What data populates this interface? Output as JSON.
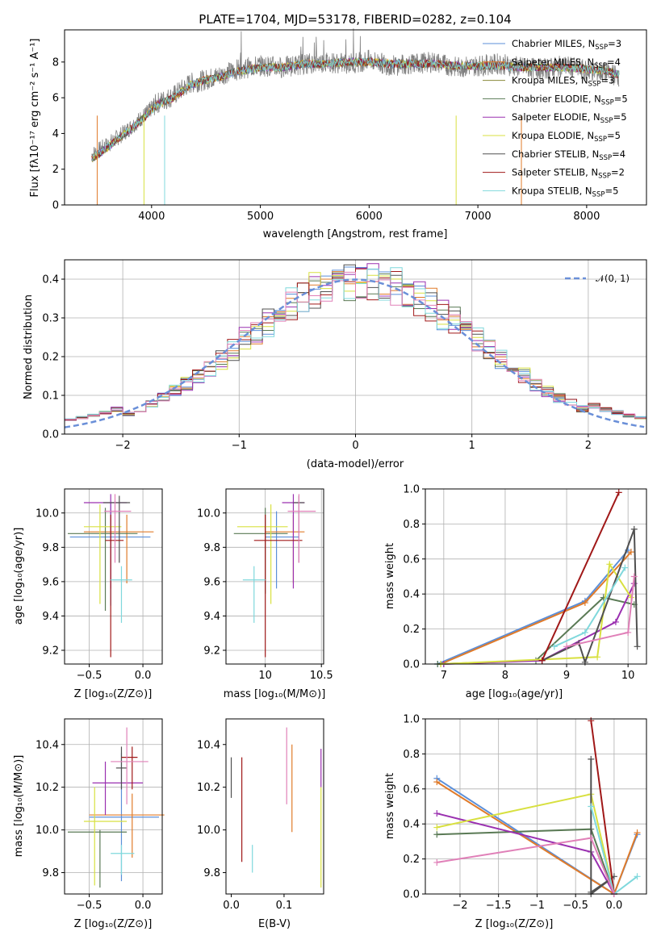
{
  "colors": [
    "#5b8fd9",
    "#e07b2a",
    "#8a8a3a",
    "#5a7a55",
    "#9a30b0",
    "#d8e040",
    "#505050",
    "#a01818",
    "#7fd8dc",
    "#e080b8",
    "#808080"
  ],
  "chart_data": [
    {
      "id": "spectrum",
      "type": "line",
      "title": "PLATE=1704, MJD=53178, FIBERID=0282, z=0.104",
      "xlabel": "wavelength [Angstrom, rest frame]",
      "ylabel": "Flux [fλ10⁻¹⁷ erg cm⁻² s⁻¹ A⁻¹]",
      "xlim": [
        3200,
        8550
      ],
      "ylim": [
        0,
        9.8
      ],
      "xticks": [
        4000,
        5000,
        6000,
        7000,
        8000
      ],
      "yticks": [
        0,
        2,
        4,
        6,
        8
      ],
      "grid": false,
      "legend_position": "top-right",
      "data_x": [
        3450,
        3550,
        3650,
        3800,
        3950,
        4050,
        4200,
        4350,
        4500,
        4650,
        4800,
        5000,
        5200,
        5400,
        5600,
        5800,
        6000,
        6200,
        6400,
        6600,
        6800,
        7000,
        7200,
        7400,
        7600,
        7800,
        8000,
        8200,
        8300
      ],
      "data_y": [
        2.8,
        3.2,
        3.6,
        4.3,
        5.1,
        5.7,
        6.1,
        6.8,
        7.0,
        7.3,
        7.6,
        7.8,
        7.7,
        7.9,
        8.0,
        7.9,
        8.1,
        7.8,
        7.9,
        8.0,
        7.7,
        7.8,
        7.9,
        7.7,
        7.6,
        7.8,
        7.5,
        7.4,
        7.2
      ],
      "model_y": [
        2.6,
        3.0,
        3.5,
        4.2,
        5.0,
        5.6,
        6.0,
        6.7,
        7.0,
        7.2,
        7.5,
        7.7,
        7.7,
        7.9,
        7.9,
        8.0,
        8.0,
        7.9,
        7.9,
        7.9,
        7.8,
        7.8,
        7.8,
        7.7,
        7.7,
        7.7,
        7.6,
        7.5,
        7.3
      ],
      "series": [
        {
          "name": "Chabrier MILES, N_SSP=3",
          "label": "Chabrier MILES, N",
          "sub": "SSP",
          "suffix": "=3"
        },
        {
          "name": "Salpeter MILES, N_SSP=4",
          "label": "Salpeter MILES, N",
          "sub": "SSP",
          "suffix": "=4"
        },
        {
          "name": "Kroupa MILES, N_SSP=3",
          "label": "Kroupa MILES, N",
          "sub": "SSP",
          "suffix": "=3"
        },
        {
          "name": "Chabrier ELODIE, N_SSP=5",
          "label": "Chabrier ELODIE, N",
          "sub": "SSP",
          "suffix": "=5"
        },
        {
          "name": "Salpeter ELODIE, N_SSP=5",
          "label": "Salpeter ELODIE, N",
          "sub": "SSP",
          "suffix": "=5"
        },
        {
          "name": "Kroupa ELODIE, N_SSP=5",
          "label": "Kroupa ELODIE, N",
          "sub": "SSP",
          "suffix": "=5"
        },
        {
          "name": "Chabrier STELIB, N_SSP=4",
          "label": "Chabrier STELIB, N",
          "sub": "SSP",
          "suffix": "=4"
        },
        {
          "name": "Salpeter STELIB, N_SSP=2",
          "label": "Salpeter STELIB, N",
          "sub": "SSP",
          "suffix": "=2"
        },
        {
          "name": "Kroupa STELIB, N_SSP=5",
          "label": "Kroupa STELIB, N",
          "sub": "SSP",
          "suffix": "=5"
        }
      ]
    },
    {
      "id": "residuals",
      "type": "histogram",
      "xlabel": "(data-model)/error",
      "ylabel": "Normed distribution",
      "xlim": [
        -2.5,
        2.5
      ],
      "ylim": [
        0,
        0.45
      ],
      "xticks": [
        -2,
        -1,
        0,
        1,
        2
      ],
      "yticks": [
        0.0,
        0.1,
        0.2,
        0.3,
        0.4
      ],
      "grid": true,
      "legend_position": "top-right",
      "reference_curve": "𝒩(0, 1)",
      "bin_width": 0.1
    },
    {
      "id": "age_vs_Z",
      "type": "errorbar",
      "xlabel": "Z [log₁₀(Z/Z⊙)]",
      "ylabel": "age  [log₁₀(age/yr)]",
      "xlim": [
        -0.73,
        0.18
      ],
      "ylim": [
        9.12,
        10.14
      ],
      "xticks": [
        -0.5,
        0.0
      ],
      "yticks": [
        9.2,
        9.4,
        9.6,
        9.8,
        10.0
      ],
      "points": [
        {
          "c": 0,
          "x": -0.3,
          "y": 9.86,
          "xe": [
            0.38,
            0.37
          ],
          "ye": [
            0.4,
            0.2
          ]
        },
        {
          "c": 1,
          "x": -0.15,
          "y": 9.89,
          "xe": [
            0.4,
            0.25
          ],
          "ye": [
            0.3,
            0.1
          ]
        },
        {
          "c": 3,
          "x": -0.35,
          "y": 9.88,
          "xe": [
            0.35,
            0.3
          ],
          "ye": [
            0.45,
            0.15
          ]
        },
        {
          "c": 4,
          "x": -0.3,
          "y": 10.06,
          "xe": [
            0.25,
            0.15
          ],
          "ye": [
            0.5,
            0.05
          ]
        },
        {
          "c": 5,
          "x": -0.4,
          "y": 9.92,
          "xe": [
            0.15,
            0.2
          ],
          "ye": [
            0.45,
            0.13
          ]
        },
        {
          "c": 6,
          "x": -0.22,
          "y": 10.06,
          "xe": [
            0.15,
            0.1
          ],
          "ye": [
            0.35,
            0.04
          ]
        },
        {
          "c": 7,
          "x": -0.3,
          "y": 9.84,
          "xe": [
            0.05,
            0.12
          ],
          "ye": [
            0.68,
            0.15
          ]
        },
        {
          "c": 8,
          "x": -0.2,
          "y": 9.61,
          "xe": [
            0.1,
            0.1
          ],
          "ye": [
            0.25,
            0.08
          ]
        },
        {
          "c": 9,
          "x": -0.26,
          "y": 10.01,
          "xe": [
            0.1,
            0.15
          ],
          "ye": [
            0.3,
            0.1
          ]
        }
      ]
    },
    {
      "id": "age_vs_mass",
      "type": "errorbar",
      "xlabel": "mass [log₁₀(M/M⊙)]",
      "ylabel": "",
      "xlim": [
        9.65,
        10.52
      ],
      "ylim": [
        9.12,
        10.14
      ],
      "xticks": [
        10.0,
        10.5
      ],
      "yticks": [
        9.2,
        9.4,
        9.6,
        9.8,
        10.0
      ],
      "points": [
        {
          "c": 0,
          "x": 10.1,
          "y": 9.86,
          "xe": [
            0.1,
            0.2
          ],
          "ye": [
            0.3,
            0.15
          ]
        },
        {
          "c": 1,
          "x": 10.25,
          "y": 9.89,
          "xe": [
            0.25,
            0.1
          ],
          "ye": [
            0.3,
            0.1
          ]
        },
        {
          "c": 3,
          "x": 10.0,
          "y": 9.88,
          "xe": [
            0.28,
            0.2
          ],
          "ye": [
            0.35,
            0.15
          ]
        },
        {
          "c": 4,
          "x": 10.25,
          "y": 10.06,
          "xe": [
            0.1,
            0.1
          ],
          "ye": [
            0.5,
            0.05
          ]
        },
        {
          "c": 5,
          "x": 10.05,
          "y": 9.92,
          "xe": [
            0.3,
            0.15
          ],
          "ye": [
            0.45,
            0.13
          ]
        },
        {
          "c": 6,
          "x": 10.3,
          "y": 10.06,
          "xe": [
            0.05,
            0.05
          ],
          "ye": [
            0.35,
            0.04
          ]
        },
        {
          "c": 7,
          "x": 10.0,
          "y": 9.84,
          "xe": [
            0.1,
            0.33
          ],
          "ye": [
            0.68,
            0.15
          ]
        },
        {
          "c": 8,
          "x": 9.9,
          "y": 9.61,
          "xe": [
            0.1,
            0.1
          ],
          "ye": [
            0.25,
            0.08
          ]
        },
        {
          "c": 9,
          "x": 10.3,
          "y": 10.01,
          "xe": [
            0.1,
            0.15
          ],
          "ye": [
            0.3,
            0.1
          ]
        }
      ]
    },
    {
      "id": "weight_vs_age",
      "type": "line",
      "xlabel": "age  [log₁₀(age/yr)]",
      "ylabel": "mass weight",
      "xlim": [
        6.7,
        10.3
      ],
      "ylim": [
        0,
        1.0
      ],
      "xticks": [
        7,
        8,
        9,
        10
      ],
      "yticks": [
        0.0,
        0.2,
        0.4,
        0.6,
        0.8,
        1.0
      ],
      "grid": true,
      "series": [
        {
          "c": 0,
          "x": [
            6.9,
            9.3,
            10.0
          ],
          "y": [
            0.0,
            0.36,
            0.65
          ]
        },
        {
          "c": 1,
          "x": 6.95,
          "xs": [
            6.95,
            9.3,
            10.05
          ],
          "ys": [
            0.0,
            0.35,
            0.64
          ]
        },
        {
          "c": 3,
          "x": [
            6.9,
            8.5,
            9.6,
            10.1
          ],
          "y": [
            0.0,
            0.02,
            0.38,
            0.34
          ]
        },
        {
          "c": 4,
          "x": [
            7.0,
            8.6,
            9.8,
            10.1
          ],
          "y": [
            0.0,
            0.02,
            0.24,
            0.46
          ]
        },
        {
          "c": 5,
          "x": [
            6.95,
            9.5,
            9.7,
            10.05
          ],
          "y": [
            0.0,
            0.04,
            0.57,
            0.38
          ]
        },
        {
          "c": 6,
          "x": [
            8.6,
            9.2,
            9.3,
            10.1,
            10.15
          ],
          "y": [
            0.02,
            0.12,
            0.01,
            0.77,
            0.1
          ]
        },
        {
          "c": 7,
          "x": [
            8.6,
            9.85
          ],
          "y": [
            0.02,
            0.98
          ]
        },
        {
          "c": 8,
          "x": [
            8.8,
            9.3,
            9.95
          ],
          "y": [
            0.1,
            0.18,
            0.55
          ]
        },
        {
          "c": 9,
          "x": [
            9.0,
            10.0,
            10.1
          ],
          "y": [
            0.1,
            0.18,
            0.5
          ]
        }
      ]
    },
    {
      "id": "mass_vs_Z",
      "type": "errorbar",
      "xlabel": "Z [log₁₀(Z/Z⊙)]",
      "ylabel": "mass [log₁₀(M/M⊙)]",
      "xlim": [
        -0.73,
        0.18
      ],
      "ylim": [
        9.7,
        10.52
      ],
      "xticks": [
        -0.5,
        0.0
      ],
      "yticks": [
        9.8,
        10.0,
        10.2,
        10.4
      ],
      "points": [
        {
          "c": 0,
          "x": -0.2,
          "y": 10.06,
          "xe": [
            0.3,
            0.35
          ],
          "ye": [
            0.3,
            0.3
          ]
        },
        {
          "c": 1,
          "x": -0.1,
          "y": 10.07,
          "xe": [
            0.4,
            0.3
          ],
          "ye": [
            0.2,
            0.1
          ]
        },
        {
          "c": 3,
          "x": -0.4,
          "y": 9.99,
          "xe": [
            0.3,
            0.25
          ],
          "ye": [
            0.26,
            0.01
          ]
        },
        {
          "c": 4,
          "x": -0.35,
          "y": 10.22,
          "xe": [
            0.12,
            0.35
          ],
          "ye": [
            0.15,
            0.1
          ]
        },
        {
          "c": 5,
          "x": -0.45,
          "y": 10.04,
          "xe": [
            0.1,
            0.3
          ],
          "ye": [
            0.3,
            0.16
          ]
        },
        {
          "c": 6,
          "x": -0.2,
          "y": 10.29,
          "xe": [
            0.05,
            0.05
          ],
          "ye": [
            0.1,
            0.1
          ]
        },
        {
          "c": 7,
          "x": -0.1,
          "y": 10.34,
          "xe": [
            0.1,
            0.05
          ],
          "ye": [
            0.15,
            0.05
          ]
        },
        {
          "c": 8,
          "x": -0.2,
          "y": 9.89,
          "xe": [
            0.1,
            0.12
          ],
          "ye": [
            0.1,
            0.04
          ]
        },
        {
          "c": 9,
          "x": -0.15,
          "y": 10.32,
          "xe": [
            0.15,
            0.2
          ],
          "ye": [
            0.2,
            0.16
          ]
        }
      ]
    },
    {
      "id": "mass_vs_ebv",
      "type": "errorbar",
      "xlabel": "E(B-V)",
      "ylabel": "",
      "xlim": [
        -0.01,
        0.175
      ],
      "ylim": [
        9.7,
        10.52
      ],
      "xticks": [
        0.0,
        0.1
      ],
      "yticks": [
        9.8,
        10.0,
        10.2,
        10.4
      ],
      "points": [
        {
          "c": 6,
          "x": 0.0,
          "y": 10.25,
          "ye": [
            0.1,
            0.09
          ]
        },
        {
          "c": 7,
          "x": 0.02,
          "y": 10.1,
          "ye": [
            0.25,
            0.24
          ]
        },
        {
          "c": 8,
          "x": 0.04,
          "y": 9.88,
          "ye": [
            0.08,
            0.05
          ]
        },
        {
          "c": 9,
          "x": 0.105,
          "y": 10.3,
          "ye": [
            0.18,
            0.18
          ]
        },
        {
          "c": 1,
          "x": 0.115,
          "y": 10.2,
          "ye": [
            0.21,
            0.2
          ]
        },
        {
          "c": 4,
          "x": 0.17,
          "y": 10.28,
          "ye": [
            0.08,
            0.1
          ]
        },
        {
          "c": 5,
          "x": 0.17,
          "y": 9.98,
          "ye": [
            0.25,
            0.22
          ]
        }
      ]
    },
    {
      "id": "weight_vs_Z",
      "type": "line",
      "xlabel": "Z [log₁₀(Z/Z⊙)]",
      "ylabel": "mass weight",
      "xlim": [
        -2.45,
        0.42
      ],
      "ylim": [
        0,
        1.0
      ],
      "xticks": [
        -2.0,
        -1.5,
        -1.0,
        -0.5,
        0.0
      ],
      "yticks": [
        0.0,
        0.2,
        0.4,
        0.6,
        0.8,
        1.0
      ],
      "grid": true,
      "series": [
        {
          "c": 0,
          "x": [
            -2.3,
            0.0,
            0.3
          ],
          "y": [
            0.66,
            0.0,
            0.34
          ]
        },
        {
          "c": 1,
          "x": [
            -2.3,
            0.0,
            0.3
          ],
          "y": [
            0.64,
            0.0,
            0.35
          ]
        },
        {
          "c": 3,
          "x": [
            -2.3,
            -0.3,
            0.0
          ],
          "y": [
            0.34,
            0.37,
            0.0
          ]
        },
        {
          "c": 4,
          "x": [
            -2.3,
            -0.3,
            0.0
          ],
          "y": [
            0.46,
            0.24,
            0.0
          ]
        },
        {
          "c": 5,
          "x": [
            -2.3,
            -0.3,
            0.0
          ],
          "y": [
            0.38,
            0.57,
            0.0
          ]
        },
        {
          "c": 6,
          "x": [
            -0.3,
            -0.3,
            0.0,
            -0.3
          ],
          "y": [
            0.77,
            0.01,
            0.1,
            0.0
          ]
        },
        {
          "c": 7,
          "x": [
            -0.3,
            0.0
          ],
          "y": [
            0.99,
            0.0
          ]
        },
        {
          "c": 8,
          "x": [
            -0.3,
            0.0,
            0.3
          ],
          "y": [
            0.5,
            0.0,
            0.1
          ]
        },
        {
          "c": 9,
          "x": [
            -2.3,
            -0.3,
            0.0
          ],
          "y": [
            0.18,
            0.32,
            0.0
          ]
        }
      ]
    }
  ]
}
